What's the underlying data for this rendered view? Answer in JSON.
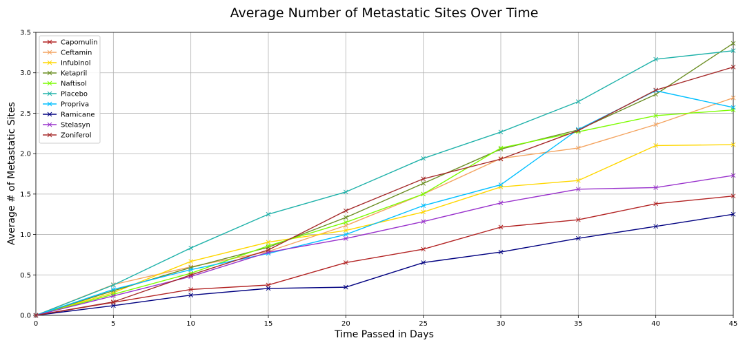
{
  "chart_data": {
    "type": "line",
    "title": "Average Number of Metastatic Sites Over Time",
    "xlabel": "Time Passed in Days",
    "ylabel": "Average # of Metastatic Sites",
    "x": [
      0,
      5,
      10,
      15,
      20,
      25,
      30,
      35,
      40,
      45
    ],
    "xlim": [
      0,
      45
    ],
    "ylim": [
      0,
      3.5
    ],
    "x_ticks": [
      "0",
      "5",
      "10",
      "15",
      "20",
      "25",
      "30",
      "35",
      "40",
      "45"
    ],
    "y_ticks": [
      "0.0",
      "0.5",
      "1.0",
      "1.5",
      "2.0",
      "2.5",
      "3.0",
      "3.5"
    ],
    "grid": true,
    "legend_position": "upper-left",
    "marker": "x",
    "series": [
      {
        "name": "Capomulin",
        "color": "#b22222",
        "values": [
          0,
          0.16,
          0.32,
          0.375,
          0.652,
          0.818,
          1.091,
          1.182,
          1.38,
          1.476
        ]
      },
      {
        "name": "Ceftamin",
        "color": "#f4a460",
        "values": [
          0,
          0.38,
          0.6,
          0.79,
          1.11,
          1.5,
          1.94,
          2.07,
          2.36,
          2.69
        ]
      },
      {
        "name": "Infubinol",
        "color": "#ffd700",
        "values": [
          0,
          0.28,
          0.667,
          0.905,
          1.05,
          1.278,
          1.588,
          1.667,
          2.1,
          2.111
        ]
      },
      {
        "name": "Ketapril",
        "color": "#6b8e23",
        "values": [
          0,
          0.304,
          0.591,
          0.842,
          1.21,
          1.632,
          2.056,
          2.294,
          2.733,
          3.364
        ]
      },
      {
        "name": "Naftisol",
        "color": "#7cfc00",
        "values": [
          0,
          0.26,
          0.52,
          0.86,
          1.15,
          1.5,
          2.07,
          2.27,
          2.47,
          2.54
        ]
      },
      {
        "name": "Placebo",
        "color": "#20b2aa",
        "values": [
          0,
          0.375,
          0.833,
          1.25,
          1.526,
          1.941,
          2.267,
          2.643,
          3.167,
          3.273
        ]
      },
      {
        "name": "Propriva",
        "color": "#00bfff",
        "values": [
          0,
          0.32,
          0.565,
          0.765,
          1.0,
          1.357,
          1.615,
          2.3,
          2.778,
          2.571
        ]
      },
      {
        "name": "Ramicane",
        "color": "#000080",
        "values": [
          0,
          0.12,
          0.25,
          0.333,
          0.348,
          0.652,
          0.783,
          0.952,
          1.1,
          1.25
        ]
      },
      {
        "name": "Stelasyn",
        "color": "#9932cc",
        "values": [
          0,
          0.24,
          0.48,
          0.78,
          0.95,
          1.16,
          1.39,
          1.56,
          1.58,
          1.73
        ]
      },
      {
        "name": "Zoniferol",
        "color": "#a52a2a",
        "values": [
          0,
          0.166,
          0.5,
          0.809,
          1.294,
          1.688,
          1.933,
          2.286,
          2.786,
          3.071
        ]
      }
    ]
  }
}
